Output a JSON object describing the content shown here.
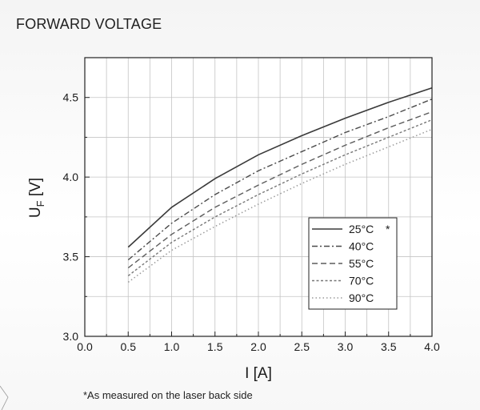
{
  "page": {
    "title": "FORWARD VOLTAGE",
    "footnote": "*As measured on the laser back side"
  },
  "chart_data": {
    "type": "line",
    "title": "FORWARD VOLTAGE",
    "xlabel": "I [A]",
    "ylabel_main": "U",
    "ylabel_sub": "F",
    "ylabel_rest": " [V]",
    "xlim": [
      0.0,
      4.0
    ],
    "ylim": [
      3.0,
      4.75
    ],
    "x_ticks": [
      "0.0",
      "0.5",
      "1.0",
      "1.5",
      "2.0",
      "2.5",
      "3.0",
      "3.5",
      "4.0"
    ],
    "y_ticks": [
      "3.0",
      "3.5",
      "4.0",
      "4.5"
    ],
    "grid": true,
    "legend_position": "lower-right",
    "x": [
      0.5,
      1.0,
      1.5,
      2.0,
      2.5,
      3.0,
      3.5,
      4.0
    ],
    "series": [
      {
        "name": "25°C",
        "marker": "*",
        "color": "#3a3a3a",
        "dash": "none",
        "values": [
          3.56,
          3.81,
          3.99,
          4.14,
          4.26,
          4.37,
          4.47,
          4.56
        ]
      },
      {
        "name": "40°C",
        "color": "#4a4a4a",
        "dash": "dashdot",
        "values": [
          3.48,
          3.71,
          3.89,
          4.04,
          4.16,
          4.28,
          4.38,
          4.49
        ]
      },
      {
        "name": "55°C",
        "color": "#5c5c5c",
        "dash": "dash",
        "values": [
          3.43,
          3.64,
          3.81,
          3.95,
          4.08,
          4.2,
          4.31,
          4.41
        ]
      },
      {
        "name": "70°C",
        "color": "#777777",
        "dash": "shortdash",
        "values": [
          3.38,
          3.59,
          3.75,
          3.89,
          4.02,
          4.14,
          4.25,
          4.36
        ]
      },
      {
        "name": "90°C",
        "color": "#9a9a9a",
        "dash": "dot",
        "values": [
          3.34,
          3.54,
          3.69,
          3.83,
          3.96,
          4.08,
          4.19,
          4.3
        ]
      }
    ]
  }
}
